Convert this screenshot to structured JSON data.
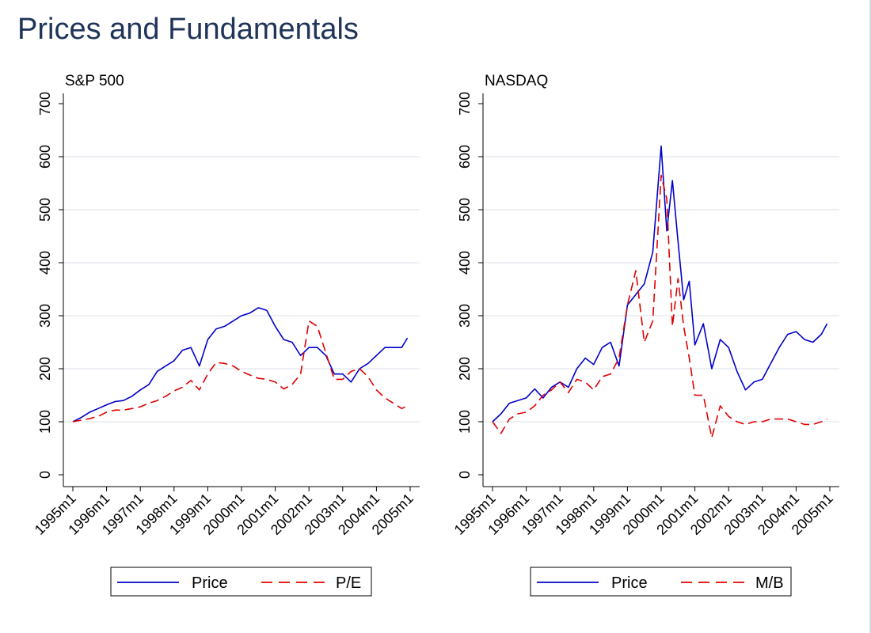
{
  "title": "Prices and Fundamentals",
  "chart_data": [
    {
      "type": "line",
      "title": "S&P 500",
      "xlabel": "",
      "ylabel": "",
      "ylim": [
        0,
        700
      ],
      "yticks": [
        0,
        100,
        200,
        300,
        400,
        500,
        600,
        700
      ],
      "xticks": [
        "1995m1",
        "1996m1",
        "1997m1",
        "1998m1",
        "1999m1",
        "2000m1",
        "2001m1",
        "2002m1",
        "2003m1",
        "2004m1",
        "2005m1"
      ],
      "xrange": [
        "1995m1",
        "2005m1"
      ],
      "grid": true,
      "legend": "bottom",
      "x": [
        "1995m1",
        "1995m4",
        "1995m7",
        "1995m10",
        "1996m1",
        "1996m4",
        "1996m7",
        "1996m10",
        "1997m1",
        "1997m4",
        "1997m7",
        "1997m10",
        "1998m1",
        "1998m4",
        "1998m7",
        "1998m10",
        "1999m1",
        "1999m4",
        "1999m7",
        "1999m10",
        "2000m1",
        "2000m4",
        "2000m7",
        "2000m10",
        "2001m1",
        "2001m4",
        "2001m7",
        "2001m10",
        "2002m1",
        "2002m4",
        "2002m7",
        "2002m10",
        "2003m1",
        "2003m4",
        "2003m7",
        "2003m10",
        "2004m1",
        "2004m4",
        "2004m7",
        "2004m10",
        "2004m12"
      ],
      "series": [
        {
          "name": "Price",
          "color": "#0000cc",
          "dash": "solid",
          "values": [
            100,
            108,
            118,
            125,
            132,
            138,
            140,
            148,
            160,
            170,
            195,
            205,
            215,
            235,
            240,
            205,
            255,
            275,
            280,
            290,
            300,
            305,
            315,
            310,
            280,
            255,
            250,
            225,
            240,
            240,
            225,
            190,
            190,
            175,
            200,
            210,
            225,
            240,
            240,
            240,
            258
          ]
        },
        {
          "name": "P/E",
          "color": "#e00000",
          "dash": "dashed",
          "values": [
            100,
            103,
            106,
            110,
            118,
            122,
            122,
            125,
            128,
            135,
            140,
            148,
            158,
            165,
            178,
            160,
            190,
            212,
            210,
            205,
            195,
            188,
            182,
            180,
            175,
            162,
            170,
            190,
            290,
            280,
            230,
            180,
            180,
            195,
            200,
            185,
            160,
            145,
            135,
            125,
            130
          ]
        }
      ]
    },
    {
      "type": "line",
      "title": "NASDAQ",
      "xlabel": "",
      "ylabel": "",
      "ylim": [
        0,
        700
      ],
      "yticks": [
        0,
        100,
        200,
        300,
        400,
        500,
        600,
        700
      ],
      "xticks": [
        "1995m1",
        "1996m1",
        "1997m1",
        "1998m1",
        "1999m1",
        "2000m1",
        "2001m1",
        "2002m1",
        "2003m1",
        "2004m1",
        "2005m1"
      ],
      "xrange": [
        "1995m1",
        "2005m1"
      ],
      "grid": true,
      "legend": "bottom",
      "x": [
        "1995m1",
        "1995m4",
        "1995m7",
        "1995m10",
        "1996m1",
        "1996m4",
        "1996m7",
        "1996m10",
        "1997m1",
        "1997m4",
        "1997m7",
        "1997m10",
        "1998m1",
        "1998m4",
        "1998m7",
        "1998m10",
        "1999m1",
        "1999m4",
        "1999m7",
        "1999m10",
        "2000m1",
        "2000m3",
        "2000m5",
        "2000m7",
        "2000m9",
        "2000m11",
        "2001m1",
        "2001m4",
        "2001m7",
        "2001m10",
        "2002m1",
        "2002m4",
        "2002m7",
        "2002m10",
        "2003m1",
        "2003m4",
        "2003m7",
        "2003m10",
        "2004m1",
        "2004m4",
        "2004m7",
        "2004m10",
        "2004m12"
      ],
      "series": [
        {
          "name": "Price",
          "color": "#0000cc",
          "dash": "solid",
          "values": [
            100,
            115,
            135,
            140,
            145,
            162,
            145,
            165,
            175,
            165,
            200,
            220,
            208,
            240,
            250,
            205,
            320,
            340,
            360,
            420,
            620,
            460,
            555,
            440,
            330,
            365,
            245,
            285,
            200,
            255,
            240,
            195,
            160,
            175,
            180,
            210,
            240,
            265,
            270,
            255,
            250,
            265,
            285
          ]
        },
        {
          "name": "M/B",
          "color": "#e00000",
          "dash": "dashed",
          "values": [
            100,
            78,
            105,
            115,
            118,
            130,
            150,
            160,
            175,
            155,
            180,
            175,
            160,
            185,
            190,
            220,
            320,
            385,
            250,
            290,
            565,
            520,
            280,
            370,
            280,
            220,
            150,
            150,
            70,
            130,
            110,
            100,
            95,
            100,
            100,
            105,
            105,
            105,
            100,
            95,
            95,
            100,
            105
          ]
        }
      ]
    }
  ]
}
